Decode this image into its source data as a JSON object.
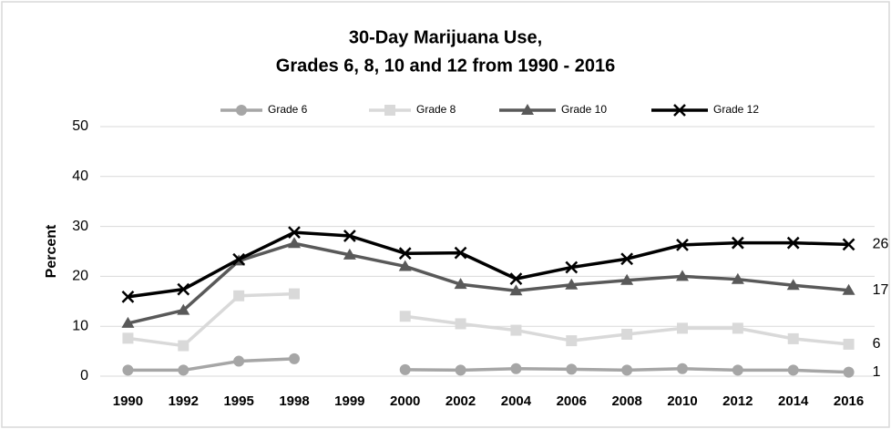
{
  "chart_data": {
    "type": "line",
    "title": "30-Day Marijuana Use,",
    "subtitle": "Grades 6, 8, 10 and 12 from 1990 - 2016",
    "y_label": "Percent",
    "categories": [
      "1990",
      "1992",
      "1995",
      "1998",
      "1999",
      "2000",
      "2002",
      "2004",
      "2006",
      "2008",
      "2010",
      "2012",
      "2014",
      "2016"
    ],
    "series": [
      {
        "name": "Grade 6",
        "color": "#a6a6a6",
        "marker": "circle",
        "values": [
          1.2,
          1.2,
          3.0,
          3.5,
          null,
          1.3,
          1.2,
          1.5,
          1.4,
          1.2,
          1.5,
          1.2,
          1.2,
          0.8
        ],
        "value_labels": [
          null,
          null,
          null,
          null,
          null,
          null,
          null,
          null,
          null,
          null,
          null,
          null,
          null,
          "1"
        ]
      },
      {
        "name": "Grade 8",
        "color": "#d9d9d9",
        "marker": "square",
        "values": [
          7.6,
          6.1,
          16.1,
          16.5,
          null,
          12.0,
          10.5,
          9.2,
          7.1,
          8.4,
          9.6,
          9.6,
          7.5,
          6.4
        ],
        "value_labels": [
          null,
          null,
          null,
          null,
          null,
          null,
          null,
          null,
          null,
          null,
          null,
          null,
          null,
          "6"
        ]
      },
      {
        "name": "Grade 10",
        "color": "#595959",
        "marker": "triangle",
        "values": [
          10.6,
          13.2,
          23.1,
          26.6,
          24.3,
          22.0,
          18.4,
          17.1,
          18.3,
          19.2,
          20.0,
          19.4,
          18.2,
          17.2
        ],
        "value_labels": [
          null,
          null,
          null,
          null,
          null,
          null,
          null,
          null,
          null,
          null,
          null,
          null,
          null,
          "17"
        ]
      },
      {
        "name": "Grade 12",
        "color": "#000000",
        "marker": "x",
        "values": [
          15.9,
          17.4,
          23.4,
          28.8,
          28.1,
          24.6,
          24.7,
          19.5,
          21.8,
          23.5,
          26.3,
          26.7,
          26.7,
          26.4
        ],
        "value_labels": [
          null,
          null,
          null,
          null,
          null,
          null,
          null,
          null,
          null,
          null,
          null,
          null,
          null,
          "26"
        ]
      }
    ],
    "ylim": [
      0,
      50
    ],
    "yticks": [
      0,
      10,
      20,
      30,
      40,
      50
    ],
    "grid": true,
    "legend": "top"
  }
}
